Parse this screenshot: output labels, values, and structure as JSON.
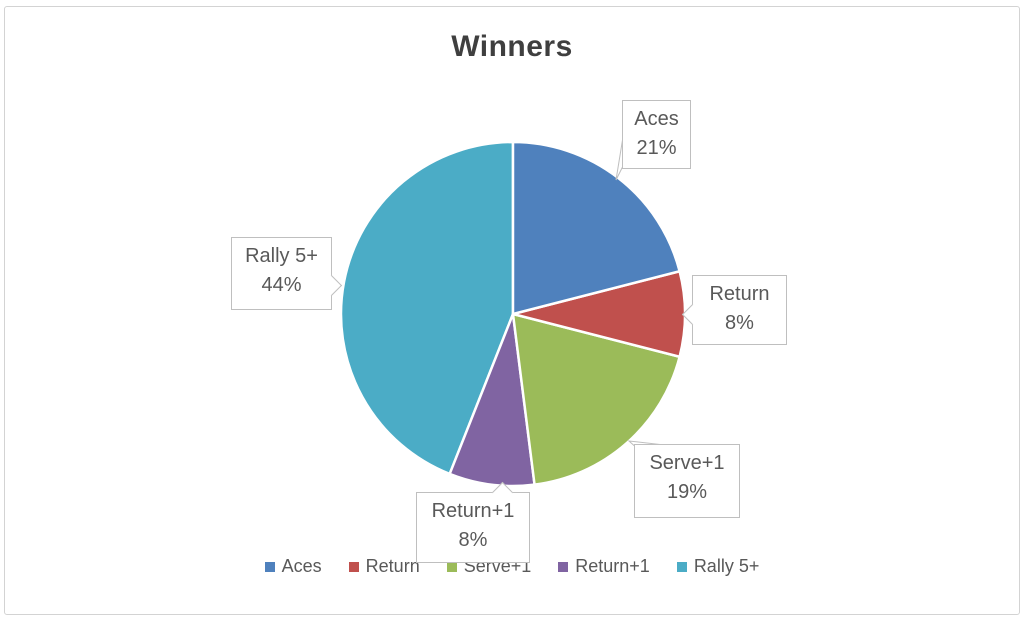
{
  "chart_data": {
    "type": "pie",
    "title": "Winners",
    "categories": [
      "Aces",
      "Return",
      "Serve+1",
      "Return+1",
      "Rally 5+"
    ],
    "values": [
      21,
      8,
      19,
      8,
      44
    ],
    "unit": "%",
    "colors": [
      "#4F81BD",
      "#C0504D",
      "#9BBB59",
      "#8064A2",
      "#4BACC6"
    ],
    "start_angle_deg": 0,
    "direction": "clockwise",
    "legend_position": "bottom",
    "data_labels": [
      {
        "line1": "Aces",
        "line2": "21%"
      },
      {
        "line1": "Return",
        "line2": "8%"
      },
      {
        "line1": "Serve+1",
        "line2": "19%"
      },
      {
        "line1": "Return+1",
        "line2": "8%"
      },
      {
        "line1": "Rally 5+",
        "line2": "44%"
      }
    ],
    "label_text_color": "#595959",
    "title_color": "#3f3f3f",
    "frame_border_color": "#d3d3d3",
    "callout_border_color": "#bfbfbf"
  }
}
